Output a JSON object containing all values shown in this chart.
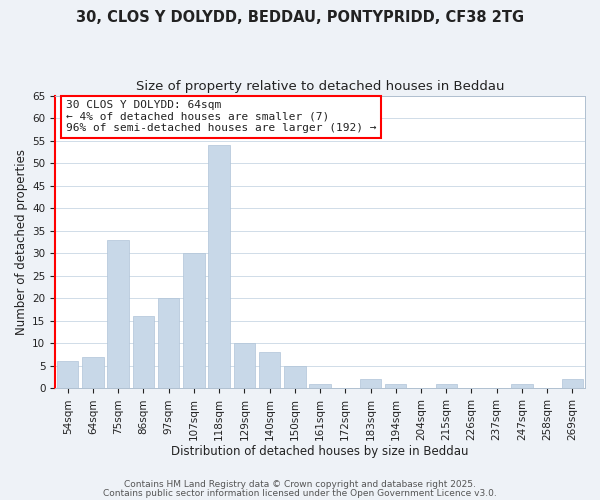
{
  "title_line1": "30, CLOS Y DOLYDD, BEDDAU, PONTYPRIDD, CF38 2TG",
  "title_line2": "Size of property relative to detached houses in Beddau",
  "xlabel": "Distribution of detached houses by size in Beddau",
  "ylabel": "Number of detached properties",
  "bar_color": "#c8d8e8",
  "bar_edge_color": "#b0c4d8",
  "categories": [
    "54sqm",
    "64sqm",
    "75sqm",
    "86sqm",
    "97sqm",
    "107sqm",
    "118sqm",
    "129sqm",
    "140sqm",
    "150sqm",
    "161sqm",
    "172sqm",
    "183sqm",
    "194sqm",
    "204sqm",
    "215sqm",
    "226sqm",
    "237sqm",
    "247sqm",
    "258sqm",
    "269sqm"
  ],
  "values": [
    6,
    7,
    33,
    16,
    20,
    30,
    54,
    10,
    8,
    5,
    1,
    0,
    2,
    1,
    0,
    1,
    0,
    0,
    1,
    0,
    2
  ],
  "highlight_index": 1,
  "annotation_line1": "30 CLOS Y DOLYDD: 64sqm",
  "annotation_line2": "← 4% of detached houses are smaller (7)",
  "annotation_line3": "96% of semi-detached houses are larger (192) →",
  "ylim": [
    0,
    65
  ],
  "yticks": [
    0,
    5,
    10,
    15,
    20,
    25,
    30,
    35,
    40,
    45,
    50,
    55,
    60,
    65
  ],
  "footer_line1": "Contains HM Land Registry data © Crown copyright and database right 2025.",
  "footer_line2": "Contains public sector information licensed under the Open Government Licence v3.0.",
  "background_color": "#eef2f7",
  "plot_bg_color": "#ffffff",
  "grid_color": "#d0dce8",
  "title_fontsize": 10.5,
  "subtitle_fontsize": 9.5,
  "axis_label_fontsize": 8.5,
  "tick_fontsize": 7.5,
  "annotation_fontsize": 8,
  "footer_fontsize": 6.5
}
